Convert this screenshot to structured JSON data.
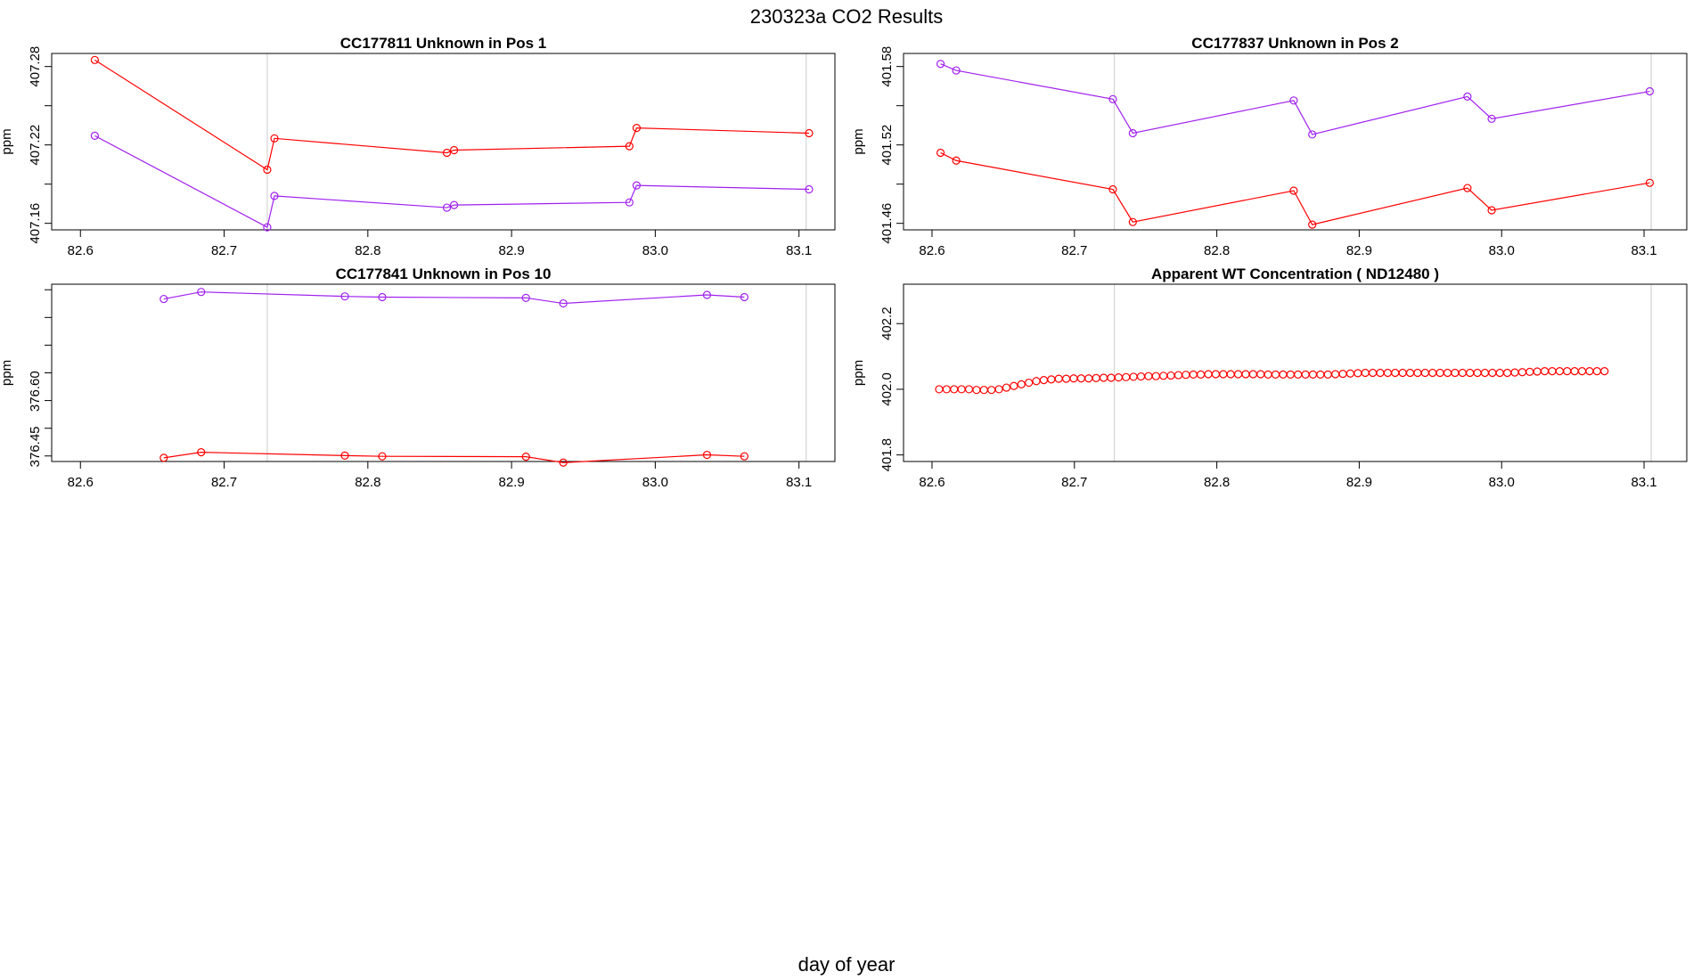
{
  "page_title": "230323a  CO2 Results",
  "x_axis_label": "day of year",
  "chart_data": [
    {
      "type": "line",
      "title": "CC177811    Unknown in Pos 1",
      "ylabel": "ppm",
      "xlim": [
        82.58,
        83.125
      ],
      "ylim": [
        407.155,
        407.29
      ],
      "xticks": [
        "82.6",
        "82.7",
        "82.8",
        "82.9",
        "83.0",
        "83.1"
      ],
      "yticks": [
        "407.16",
        "407.22",
        "407.28"
      ],
      "vlines": [
        82.73,
        83.105
      ],
      "series": [
        {
          "name": "red",
          "color": "#ff0000",
          "x": [
            82.61,
            82.73,
            82.735,
            82.855,
            82.86,
            82.982,
            82.987,
            83.107
          ],
          "y": [
            407.285,
            407.201,
            407.225,
            407.214,
            407.216,
            407.219,
            407.233,
            407.229
          ]
        },
        {
          "name": "purple",
          "color": "#a020f0",
          "x": [
            82.61,
            82.73,
            82.735,
            82.855,
            82.86,
            82.982,
            82.987,
            83.107
          ],
          "y": [
            407.227,
            407.157,
            407.181,
            407.172,
            407.174,
            407.176,
            407.189,
            407.186
          ]
        }
      ]
    },
    {
      "type": "line",
      "title": "CC177837    Unknown in Pos 2",
      "ylabel": "ppm",
      "xlim": [
        82.58,
        83.13
      ],
      "ylim": [
        401.455,
        401.59
      ],
      "xticks": [
        "82.6",
        "82.7",
        "82.8",
        "82.9",
        "83.0",
        "83.1"
      ],
      "yticks": [
        "401.46",
        "401.52",
        "401.58"
      ],
      "vlines": [
        82.728,
        83.105
      ],
      "series": [
        {
          "name": "purple",
          "color": "#a020f0",
          "x": [
            82.606,
            82.617,
            82.727,
            82.741,
            82.854,
            82.867,
            82.976,
            82.993,
            83.104
          ],
          "y": [
            401.582,
            401.577,
            401.555,
            401.529,
            401.554,
            401.528,
            401.557,
            401.54,
            401.561
          ]
        },
        {
          "name": "red",
          "color": "#ff0000",
          "x": [
            82.606,
            82.617,
            82.727,
            82.741,
            82.854,
            82.867,
            82.976,
            82.993,
            83.104
          ],
          "y": [
            401.514,
            401.508,
            401.486,
            401.461,
            401.485,
            401.459,
            401.487,
            401.47,
            401.491
          ]
        }
      ]
    },
    {
      "type": "line",
      "title": "CC177841    Unknown in Pos 10",
      "ylabel": "ppm",
      "xlim": [
        82.58,
        83.125
      ],
      "ylim": [
        376.41,
        376.89
      ],
      "xticks": [
        "82.6",
        "82.7",
        "82.8",
        "82.9",
        "83.0",
        "83.1"
      ],
      "yticks": [
        "376.45",
        "376.60"
      ],
      "vlines": [
        82.73,
        83.105
      ],
      "series": [
        {
          "name": "purple",
          "color": "#a020f0",
          "x": [
            82.658,
            82.684,
            82.784,
            82.81,
            82.91,
            82.936,
            83.036,
            83.062
          ],
          "y": [
            376.85,
            376.869,
            376.857,
            376.855,
            376.853,
            376.838,
            376.861,
            376.855
          ]
        },
        {
          "name": "red",
          "color": "#ff0000",
          "x": [
            82.658,
            82.684,
            82.784,
            82.81,
            82.91,
            82.936,
            83.036,
            83.062
          ],
          "y": [
            376.42,
            376.435,
            376.426,
            376.424,
            376.423,
            376.407,
            376.428,
            376.424
          ]
        }
      ]
    },
    {
      "type": "scatter",
      "title": "Apparent WT Concentration ( ND12480 )",
      "ylabel": "ppm",
      "xlim": [
        82.58,
        83.13
      ],
      "ylim": [
        401.78,
        402.32
      ],
      "xticks": [
        "82.6",
        "82.7",
        "82.8",
        "82.9",
        "83.0",
        "83.1"
      ],
      "yticks": [
        "401.8",
        "402.0",
        "402.2"
      ],
      "vlines": [
        82.728,
        83.105
      ],
      "series": [
        {
          "name": "apparent",
          "color": "#ff0000",
          "x_start": 82.605,
          "x_step": 0.00525,
          "y": [
            402.0,
            402.0,
            402.0,
            402.0,
            402.0,
            401.998,
            401.998,
            401.998,
            402.0,
            402.005,
            402.01,
            402.015,
            402.02,
            402.025,
            402.028,
            402.03,
            402.032,
            402.032,
            402.033,
            402.033,
            402.033,
            402.034,
            402.035,
            402.035,
            402.036,
            402.037,
            402.038,
            402.039,
            402.04,
            402.04,
            402.041,
            402.042,
            402.043,
            402.044,
            402.045,
            402.045,
            402.046,
            402.046,
            402.046,
            402.046,
            402.046,
            402.046,
            402.046,
            402.046,
            402.045,
            402.045,
            402.045,
            402.045,
            402.045,
            402.045,
            402.045,
            402.045,
            402.045,
            402.046,
            402.047,
            402.048,
            402.049,
            402.05,
            402.05,
            402.05,
            402.05,
            402.05,
            402.05,
            402.05,
            402.05,
            402.05,
            402.05,
            402.05,
            402.05,
            402.05,
            402.05,
            402.05,
            402.05,
            402.05,
            402.05,
            402.05,
            402.05,
            402.051,
            402.052,
            402.053,
            402.054,
            402.055,
            402.055,
            402.055,
            402.055,
            402.055,
            402.055,
            402.055,
            402.055,
            402.055
          ]
        }
      ]
    }
  ]
}
